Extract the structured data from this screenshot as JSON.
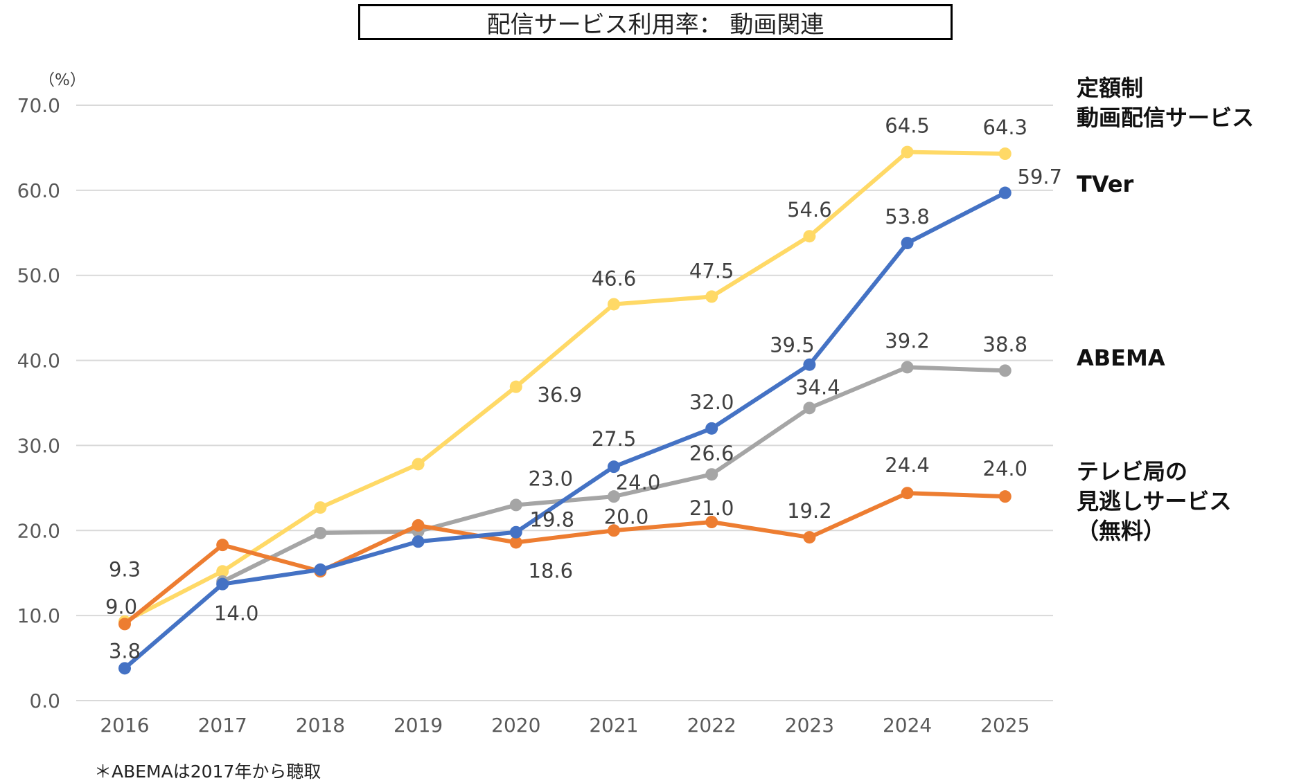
{
  "chart_data": {
    "type": "line",
    "title": "配信サービス利用率： 動画関連",
    "unit": "（%）",
    "footnote": "＊ABEMAは2017年から聴取",
    "x": [
      "2016",
      "2017",
      "2018",
      "2019",
      "2020",
      "2021",
      "2022",
      "2023",
      "2024",
      "2025"
    ],
    "ylim": [
      0,
      70
    ],
    "yticks": [
      "0.0",
      "10.0",
      "20.0",
      "30.0",
      "40.0",
      "50.0",
      "60.0",
      "70.0"
    ],
    "grid": true,
    "legend": "right",
    "series": [
      {
        "name": "定額制\n動画配信サービス",
        "color": "#FFD966",
        "values": [
          9.3,
          15.2,
          22.7,
          27.8,
          36.9,
          46.6,
          47.5,
          54.6,
          64.5,
          64.3
        ],
        "labels": [
          "9.3",
          null,
          null,
          null,
          "36.9",
          "46.6",
          "47.5",
          "54.6",
          "64.5",
          "64.3"
        ]
      },
      {
        "name": "TVer",
        "color": "#4472C4",
        "values": [
          3.8,
          13.7,
          15.4,
          18.7,
          19.8,
          27.5,
          32.0,
          39.5,
          53.8,
          59.7
        ],
        "labels": [
          "3.8",
          null,
          null,
          null,
          "19.8",
          "27.5",
          "32.0",
          "39.5",
          "53.8",
          "59.7"
        ]
      },
      {
        "name": "ABEMA",
        "color": "#A5A5A5",
        "values": [
          null,
          14.0,
          19.7,
          19.9,
          23.0,
          24.0,
          26.6,
          34.4,
          39.2,
          38.8
        ],
        "labels": [
          null,
          "14.0",
          null,
          null,
          "23.0",
          "24.0",
          "26.6",
          "34.4",
          "39.2",
          "38.8"
        ]
      },
      {
        "name": "テレビ局の\n見逃しサービス\n（無料）",
        "color": "#ED7D31",
        "values": [
          9.0,
          18.3,
          15.2,
          20.6,
          18.6,
          20.0,
          21.0,
          19.2,
          24.4,
          24.0
        ],
        "labels": [
          "9.0",
          null,
          null,
          null,
          "18.6",
          "20.0",
          "21.0",
          "19.2",
          "24.4",
          "24.0"
        ]
      }
    ]
  }
}
